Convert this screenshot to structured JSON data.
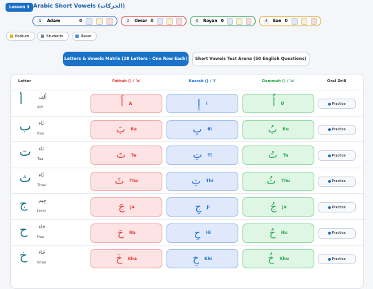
{
  "header": {
    "badge": "Lesson 3",
    "title": "Arabic Short Vowels (الحركات)"
  },
  "players": [
    {
      "number": "1",
      "name": "Adam",
      "score": "0",
      "color": "#3b6fd6"
    },
    {
      "number": "2",
      "name": "Omar",
      "score": "0",
      "color": "#d64545"
    },
    {
      "number": "3",
      "name": "Rayan",
      "score": "0",
      "color": "#2e9e4f"
    },
    {
      "number": "4",
      "name": "Ean",
      "score": "0",
      "color": "#e0a020"
    }
  ],
  "toolbar": [
    "Podium",
    "Students",
    "Reset"
  ],
  "tabs": [
    {
      "label": "Letters & Vowels Matrix (28 Letters - One Row Each)",
      "active": true
    },
    {
      "label": "Short Vowels Test Arena (50 English Questions)",
      "active": false
    }
  ],
  "table": {
    "headers": [
      "Letter",
      "Fathah (َ) / 'a'",
      "Kasrah (ِ) / 'i'",
      "Dammah (ُ) / 'u'",
      "Oral Drill"
    ],
    "rows": [
      {
        "letter": "أ",
        "arabic_name": "أَلِف",
        "name": "Alif",
        "fathah": [
          "أَ",
          "A"
        ],
        "kasrah": [
          "إِ",
          "I"
        ],
        "dammah": [
          "أُ",
          "U"
        ],
        "drill": "Practice"
      },
      {
        "letter": "ب",
        "arabic_name": "بَاء",
        "name": "Baa",
        "fathah": [
          "بَ",
          "Ba"
        ],
        "kasrah": [
          "بِ",
          "Bi"
        ],
        "dammah": [
          "بُ",
          "Bu"
        ],
        "drill": "Practice"
      },
      {
        "letter": "ت",
        "arabic_name": "تَاء",
        "name": "Taa",
        "fathah": [
          "تَ",
          "Ta"
        ],
        "kasrah": [
          "تِ",
          "Ti"
        ],
        "dammah": [
          "تُ",
          "Tu"
        ],
        "drill": "Practice"
      },
      {
        "letter": "ث",
        "arabic_name": "ثَاء",
        "name": "Thaa",
        "fathah": [
          "ثَ",
          "Tha"
        ],
        "kasrah": [
          "ثِ",
          "Thi"
        ],
        "dammah": [
          "ثُ",
          "Thu"
        ],
        "drill": "Practice"
      },
      {
        "letter": "ج",
        "arabic_name": "جِيم",
        "name": "Jeem",
        "fathah": [
          "جَ",
          "Ja"
        ],
        "kasrah": [
          "جِ",
          "Ji"
        ],
        "dammah": [
          "جُ",
          "Ju"
        ],
        "drill": "Practice"
      },
      {
        "letter": "ح",
        "arabic_name": "حَاء",
        "name": "Haa",
        "fathah": [
          "حَ",
          "Ha"
        ],
        "kasrah": [
          "حِ",
          "Hi"
        ],
        "dammah": [
          "حُ",
          "Hu"
        ],
        "drill": "Practice"
      },
      {
        "letter": "خ",
        "arabic_name": "خَاء",
        "name": "Khaa",
        "fathah": [
          "خَ",
          "Kha"
        ],
        "kasrah": [
          "خِ",
          "Khi"
        ],
        "dammah": [
          "خُ",
          "Khu"
        ],
        "drill": "Practice"
      }
    ]
  }
}
